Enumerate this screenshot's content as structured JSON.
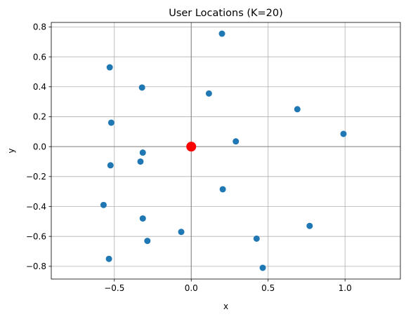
{
  "chart_data": {
    "type": "scatter",
    "title": "User Locations (K=20)",
    "xlabel": "x",
    "ylabel": "y",
    "xlim": [
      -0.91,
      1.36
    ],
    "ylim": [
      -0.885,
      0.83
    ],
    "xticks": [
      -0.5,
      0.0,
      0.5,
      1.0
    ],
    "xtick_labels": [
      "−0.5",
      "0.0",
      "0.5",
      "1.0"
    ],
    "yticks": [
      -0.8,
      -0.6,
      -0.4,
      -0.2,
      0.0,
      0.2,
      0.4,
      0.6,
      0.8
    ],
    "ytick_labels": [
      "−0.8",
      "−0.6",
      "−0.4",
      "−0.2",
      "0.0",
      "0.2",
      "0.4",
      "0.6",
      "0.8"
    ],
    "grid": true,
    "zero_lines": true,
    "colors": {
      "users": "#1f77b4",
      "center": "#ff0000",
      "grid": "#b0b0b0",
      "zero_line": "#808080"
    },
    "center": {
      "x": 0.0,
      "y": 0.0
    },
    "points": [
      {
        "x": 0.2,
        "y": 0.755
      },
      {
        "x": -0.53,
        "y": 0.53
      },
      {
        "x": -0.32,
        "y": 0.395
      },
      {
        "x": 0.115,
        "y": 0.355
      },
      {
        "x": 0.69,
        "y": 0.25
      },
      {
        "x": -0.52,
        "y": 0.16
      },
      {
        "x": 0.99,
        "y": 0.085
      },
      {
        "x": 0.29,
        "y": 0.035
      },
      {
        "x": -0.315,
        "y": -0.04
      },
      {
        "x": -0.33,
        "y": -0.1
      },
      {
        "x": -0.525,
        "y": -0.125
      },
      {
        "x": 0.205,
        "y": -0.285
      },
      {
        "x": -0.57,
        "y": -0.39
      },
      {
        "x": -0.315,
        "y": -0.48
      },
      {
        "x": 0.77,
        "y": -0.53
      },
      {
        "x": -0.065,
        "y": -0.57
      },
      {
        "x": 0.425,
        "y": -0.615
      },
      {
        "x": -0.285,
        "y": -0.63
      },
      {
        "x": -0.535,
        "y": -0.75
      },
      {
        "x": 0.465,
        "y": -0.81
      }
    ]
  }
}
